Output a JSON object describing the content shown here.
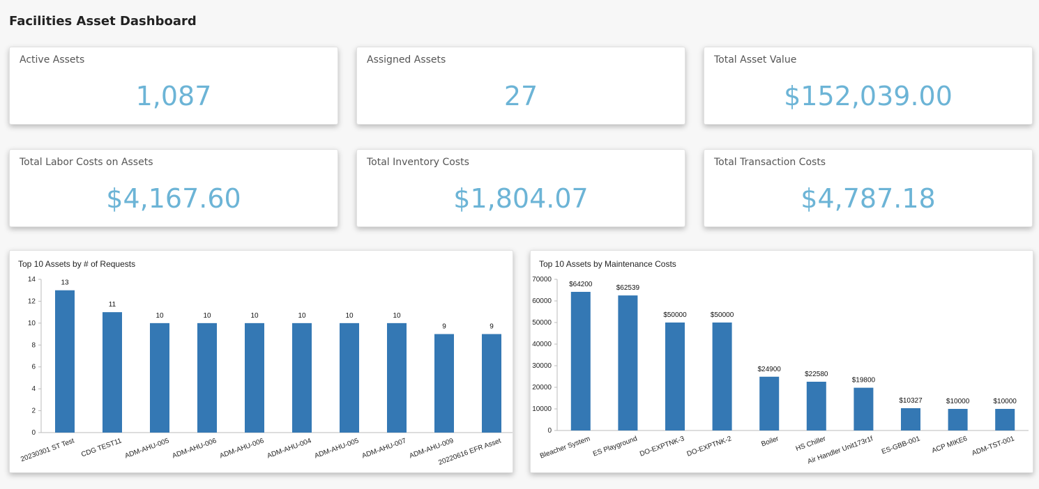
{
  "page": {
    "title": "Facilities Asset Dashboard"
  },
  "theme": {
    "kpi_value_color": "#6cb4d6",
    "bar_color": "#3478b4"
  },
  "kpis": [
    {
      "label": "Active Assets",
      "value": "1,087"
    },
    {
      "label": "Assigned Assets",
      "value": "27"
    },
    {
      "label": "Total Asset Value",
      "value": "$152,039.00"
    },
    {
      "label": "Total Labor Costs on Assets",
      "value": "$4,167.60"
    },
    {
      "label": "Total Inventory Costs",
      "value": "$1,804.07"
    },
    {
      "label": "Total Transaction Costs",
      "value": "$4,787.18"
    }
  ],
  "chart_data": [
    {
      "type": "bar",
      "title": "Top 10 Assets by # of Requests",
      "categories": [
        "20230301 ST Test",
        "CDG TEST11",
        "ADM-AHU-005",
        "ADM-AHU-006",
        "ADM-AHU-006",
        "ADM-AHU-004",
        "ADM-AHU-005",
        "ADM-AHU-007",
        "ADM-AHU-009",
        "20220616 EFR Asset"
      ],
      "values": [
        13,
        11,
        10,
        10,
        10,
        10,
        10,
        10,
        9,
        9
      ],
      "data_labels": [
        "13",
        "11",
        "10",
        "10",
        "10",
        "10",
        "10",
        "10",
        "9",
        "9"
      ],
      "y_ticks": [
        "0",
        "2",
        "4",
        "6",
        "8",
        "10",
        "12",
        "14"
      ],
      "ylim": [
        0,
        14
      ],
      "xlabel": "",
      "ylabel": "",
      "grid": false,
      "legend": "none"
    },
    {
      "type": "bar",
      "title": "Top 10 Assets by Maintenance Costs",
      "categories": [
        "Bleacher System",
        "ES Playground",
        "DO-EXPTNK-3",
        "DO-EXPTNK-2",
        "Boiler",
        "HS Chiller",
        "Air Handler Unit173r1f",
        "ES-GBB-001",
        "ACP MIKE6",
        "ADM-TST-001"
      ],
      "values": [
        64200,
        62539,
        50000,
        50000,
        24900,
        22580,
        19800,
        10327,
        10000,
        10000
      ],
      "data_labels": [
        "$64200",
        "$62539",
        "$50000",
        "$50000",
        "$24900",
        "$22580",
        "$19800",
        "$10327",
        "$10000",
        "$10000"
      ],
      "y_ticks": [
        "0",
        "10000",
        "20000",
        "30000",
        "40000",
        "50000",
        "60000",
        "70000"
      ],
      "ylim": [
        0,
        70000
      ],
      "xlabel": "",
      "ylabel": "",
      "grid": false,
      "legend": "none"
    }
  ]
}
